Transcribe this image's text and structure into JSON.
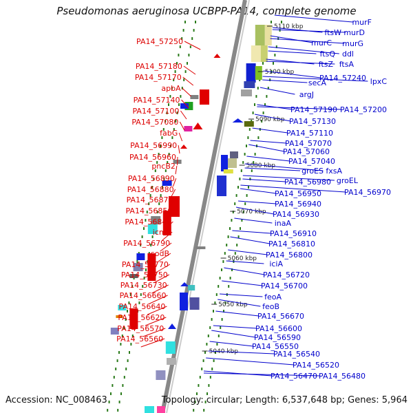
{
  "title": "Pseudomonas aeruginosa UCBPP-PA14, complete genome",
  "accession": "Accession: NC_008463",
  "summary": "Topology: circular; Length: 6,537,648 bp; Genes: 5,964",
  "colors": {
    "backbone": "#888888",
    "tick_dots": "#2a7a1a",
    "left_labels": "#dd0000",
    "right_labels": "#0000cc"
  },
  "kbp_marks": [
    {
      "label": "5110 kbp",
      "kbp": 5110
    },
    {
      "label": "5100 kbp",
      "kbp": 5100
    },
    {
      "label": "5090 kbp",
      "kbp": 5090
    },
    {
      "label": "5080 kbp",
      "kbp": 5080
    },
    {
      "label": "5070 kbp",
      "kbp": 5070
    },
    {
      "label": "5060 kbp",
      "kbp": 5060
    },
    {
      "label": "5050 kbp",
      "kbp": 5050
    },
    {
      "label": "5040 kbp",
      "kbp": 5040
    }
  ],
  "left_genes": [
    "PA14_57250",
    "PA14_57180",
    "PA14_57170",
    "apbA",
    "PA14_57140",
    "PA14_57100",
    "PA14_57080",
    "fabG",
    "PA14_56990",
    "PA14_56960",
    "pncB2",
    "PA14_56890",
    "PA14_56880",
    "PA14_56870",
    "PA14_56850",
    "PA14_56840",
    "icmP",
    "PA14_56790",
    "sodB",
    "PA14_56770",
    "PA14_56750",
    "PA14_56730",
    "PA14_56660",
    "PA14_56640",
    "PA14_56620",
    "PA14_56570",
    "PA14_56560"
  ],
  "right_genes": [
    "murF",
    "ftsW",
    "murD",
    "murC",
    "murG",
    "ftsQ",
    "ddl",
    "ftsZ",
    "ftsA",
    "PA14_57240",
    "lpxC",
    "secA",
    "argJ",
    "PA14_57190",
    "PA14_57200",
    "PA14_57130",
    "PA14_57110",
    "PA14_57070",
    "PA14_57060",
    "PA14_57040",
    "groES",
    "fxsA",
    "groEL",
    "PA14_56980",
    "PA14_56970",
    "PA14_56950",
    "PA14_56940",
    "PA14_56930",
    "inaA",
    "PA14_56910",
    "PA14_56810",
    "PA14_56800",
    "iciA",
    "PA14_56720",
    "PA14_56700",
    "feoA",
    "feoB",
    "PA14_56670",
    "PA14_56600",
    "PA14_56590",
    "PA14_56550",
    "PA14_56540",
    "PA14_56520",
    "PA14_56470",
    "PA14_56480"
  ]
}
